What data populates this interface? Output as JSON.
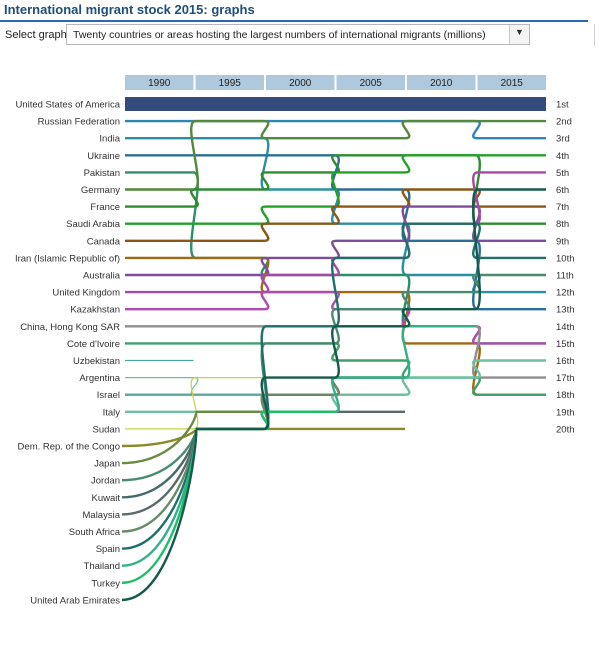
{
  "page": {
    "title": "International migrant stock 2015: graphs",
    "select_label": "Select graph:",
    "selected_graph": "Twenty countries or areas hosting the largest numbers of international migrants (millions)",
    "dropdown_icon": "chevron-down-icon"
  },
  "chart_data": {
    "type": "bump",
    "years": [
      "1990",
      "1995",
      "2000",
      "2005",
      "2010",
      "2015"
    ],
    "rank_labels": [
      "1st",
      "2nd",
      "3rd",
      "4th",
      "5th",
      "6th",
      "7th",
      "8th",
      "9th",
      "10th",
      "11th",
      "12th",
      "13th",
      "14th",
      "15th",
      "16th",
      "17th",
      "18th",
      "19th",
      "20th"
    ],
    "countries": [
      {
        "name": "United States of America",
        "color": "#344c7c",
        "ranks": [
          1,
          1,
          1,
          1,
          1,
          1
        ]
      },
      {
        "name": "Russian Federation",
        "color": "#2f86b3",
        "ranks": [
          2,
          2,
          2,
          2,
          2,
          3
        ]
      },
      {
        "name": "India",
        "color": "#2a8fa3",
        "ranks": [
          3,
          3,
          6,
          8,
          11,
          12
        ]
      },
      {
        "name": "Ukraine",
        "color": "#2a6f97",
        "ranks": [
          4,
          4,
          4,
          6,
          9,
          13
        ]
      },
      {
        "name": "Pakistan",
        "color": "#2a8f6a",
        "ranks": [
          5,
          10,
          11,
          11,
          14,
          15
        ]
      },
      {
        "name": "Germany",
        "color": "#54883a",
        "ranks": [
          6,
          2,
          3,
          3,
          2,
          2
        ]
      },
      {
        "name": "France",
        "color": "#2e8c2e",
        "ranks": [
          7,
          6,
          5,
          4,
          4,
          8
        ]
      },
      {
        "name": "Saudi Arabia",
        "color": "#23a12a",
        "ranks": [
          8,
          8,
          7,
          5,
          4,
          4
        ]
      },
      {
        "name": "Canada",
        "color": "#8a5716",
        "ranks": [
          9,
          9,
          8,
          7,
          6,
          7
        ]
      },
      {
        "name": "Iran (Islamic Republic of)",
        "color": "#a06a12",
        "ranks": [
          10,
          10,
          12,
          12,
          15,
          18
        ]
      },
      {
        "name": "Australia",
        "color": "#7a4e9a",
        "ranks": [
          11,
          11,
          10,
          9,
          7,
          9
        ]
      },
      {
        "name": "United Kingdom",
        "color": "#a24aa8",
        "ranks": [
          12,
          12,
          11,
          10,
          8,
          5
        ]
      },
      {
        "name": "Kazakhstan",
        "color": "#b04ab2",
        "ranks": [
          13,
          13,
          12,
          13,
          14,
          15
        ]
      },
      {
        "name": "China, Hong Kong SAR",
        "color": "#8e8e8e",
        "ranks": [
          14,
          14,
          14,
          14,
          14,
          17
        ]
      },
      {
        "name": "Cote d'Ivoire",
        "color": "#3fa06a",
        "ranks": [
          15,
          15,
          15,
          16,
          17,
          18
        ]
      },
      {
        "name": "Uzbekistan",
        "color": "#4ca5a0",
        "ranks": [
          16
        ]
      },
      {
        "name": "Argentina",
        "color": "#6cc58a",
        "ranks": [
          17,
          18
        ]
      },
      {
        "name": "Israel",
        "color": "#5aa8a0",
        "ranks": [
          18,
          18,
          18,
          18
        ]
      },
      {
        "name": "Italy",
        "color": "#6fbfa0",
        "ranks": [
          19,
          19,
          19,
          18,
          17,
          16
        ]
      },
      {
        "name": "Sudan",
        "color": "#c8d43a",
        "ranks": [
          20,
          17
        ]
      },
      {
        "name": "Dem. Rep. of the Congo",
        "color": "#8a8a28",
        "ranks": [
          21,
          20,
          20,
          20
        ]
      },
      {
        "name": "Japan",
        "color": "#6a8a42",
        "ranks": [
          22,
          19,
          18,
          17
        ]
      },
      {
        "name": "Jordan",
        "color": "#4a8a70",
        "ranks": [
          23,
          20,
          15,
          13,
          12,
          11
        ]
      },
      {
        "name": "Kuwait",
        "color": "#466a6a",
        "ranks": [
          24,
          20,
          18,
          17
        ]
      },
      {
        "name": "Malaysia",
        "color": "#5a6a6a",
        "ranks": [
          25,
          20,
          19,
          19
        ]
      },
      {
        "name": "South Africa",
        "color": "#6a8a6a",
        "ranks": [
          26,
          20,
          18,
          17
        ]
      },
      {
        "name": "Spain",
        "color": "#1f6f6a",
        "ranks": [
          27,
          20,
          14,
          10,
          8,
          10
        ]
      },
      {
        "name": "Thailand",
        "color": "#33b08a",
        "ranks": [
          28,
          20,
          19,
          17,
          14
        ]
      },
      {
        "name": "Turkey",
        "color": "#1cbf6a",
        "ranks": [
          29,
          20,
          19
        ]
      },
      {
        "name": "United Arab Emirates",
        "color": "#155a4a",
        "ranks": [
          30,
          20,
          17,
          14,
          13,
          6
        ]
      }
    ]
  }
}
